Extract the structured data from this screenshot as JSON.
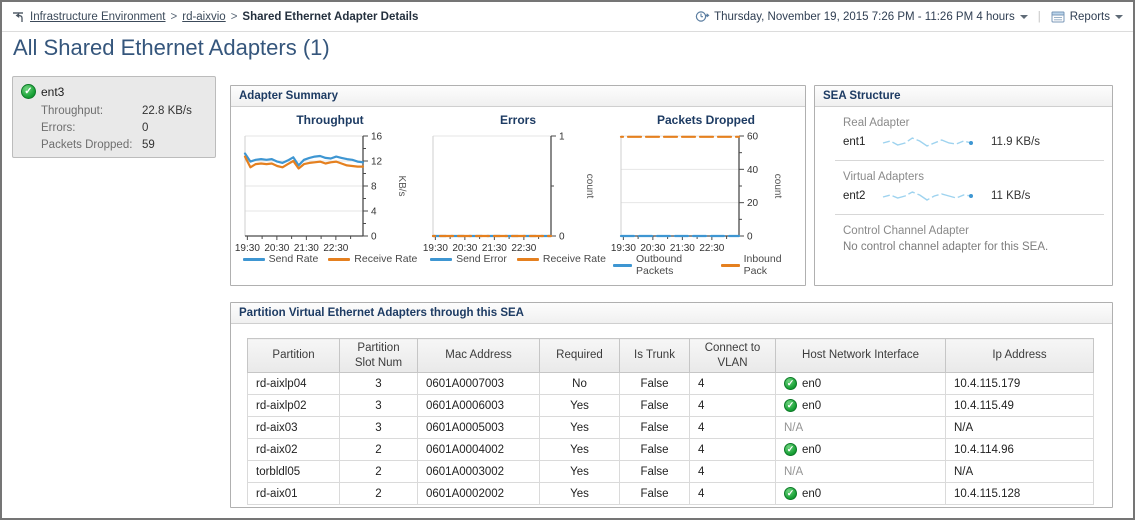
{
  "header": {
    "breadcrumb": {
      "separator": ">",
      "items": [
        {
          "label": "Infrastructure Environment"
        },
        {
          "label": "rd-aixvio"
        },
        {
          "label": "Shared Ethernet Adapter Details"
        }
      ]
    },
    "time_range": "Thursday, November 19, 2015 7:26 PM - 11:26 PM 4 hours",
    "divider": "|",
    "reports_label": "Reports"
  },
  "page": {
    "title": "All Shared Ethernet Adapters (1)"
  },
  "selected_adapter": {
    "name": "ent3",
    "stats": [
      {
        "label": "Throughput:",
        "value": "22.8 KB/s"
      },
      {
        "label": "Errors:",
        "value": "0"
      },
      {
        "label": "Packets Dropped:",
        "value": "59"
      }
    ]
  },
  "panels": {
    "adapter_summary": "Adapter Summary",
    "sea_structure": "SEA Structure",
    "partition_table": "Partition Virtual Ethernet Adapters through this SEA"
  },
  "chart_data": [
    {
      "type": "line",
      "title": "Throughput",
      "ylabel": "KB/s",
      "ylim": [
        0,
        16
      ],
      "yticks": [
        0,
        4,
        8,
        12,
        16
      ],
      "grid": true,
      "legend_position": "bottom",
      "x_tick_labels": [
        "19:30",
        "20:30",
        "21:30",
        "22:30"
      ],
      "x_tick_pos": [
        0.02,
        0.27,
        0.52,
        0.77
      ],
      "x_minor_pos": [
        0.145,
        0.395,
        0.645,
        0.895
      ],
      "series": [
        {
          "name": "Send Rate",
          "color": "#3e96d2",
          "values": [
            13.2,
            11.9,
            12.2,
            12.3,
            12.2,
            12.3,
            11.9,
            11.7,
            12.1,
            12.6,
            11.3,
            12.2,
            12.5,
            12.7,
            12.8,
            12.5,
            12.4,
            12.7,
            12.5,
            12.3,
            12.2,
            11.9,
            11.8
          ]
        },
        {
          "name": "Receive Rate",
          "color": "#e5801f",
          "values": [
            12.7,
            11.0,
            11.5,
            11.6,
            11.5,
            11.6,
            11.2,
            11.0,
            11.5,
            12.0,
            10.8,
            11.5,
            11.7,
            11.8,
            11.9,
            11.6,
            11.8,
            11.9,
            11.6,
            11.3,
            11.2,
            11.1,
            11.1
          ]
        }
      ]
    },
    {
      "type": "line",
      "title": "Errors",
      "ylabel": "count",
      "ylim": [
        0,
        1
      ],
      "yticks": [
        0,
        1
      ],
      "grid": true,
      "legend_position": "bottom",
      "x_tick_labels": [
        "19:30",
        "20:30",
        "21:30",
        "22:30"
      ],
      "x_tick_pos": [
        0.02,
        0.27,
        0.52,
        0.77
      ],
      "x_minor_pos": [
        0.145,
        0.395,
        0.645,
        0.895
      ],
      "series": [
        {
          "name": "Send Error",
          "color": "#3e96d2",
          "values": [
            0,
            0,
            0,
            0,
            0,
            0,
            0,
            0,
            0,
            0,
            0,
            0,
            0,
            0,
            0
          ]
        },
        {
          "name": "Receive Rate",
          "color": "#e5801f",
          "values": [
            0,
            0,
            0,
            0,
            0,
            0,
            0,
            0,
            0,
            0,
            0,
            0,
            0,
            0,
            0
          ]
        }
      ]
    },
    {
      "type": "line",
      "title": "Packets Dropped",
      "ylabel": "count",
      "ylim": [
        0,
        60
      ],
      "yticks": [
        0,
        20,
        40,
        60
      ],
      "grid": true,
      "legend_position": "bottom",
      "x_tick_labels": [
        "19:30",
        "20:30",
        "21:30",
        "22:30"
      ],
      "x_tick_pos": [
        0.02,
        0.27,
        0.52,
        0.77
      ],
      "x_minor_pos": [
        0.145,
        0.395,
        0.645,
        0.895
      ],
      "series": [
        {
          "name": "Outbound Packets",
          "color": "#3e96d2",
          "values": [
            0,
            0,
            0,
            0,
            0,
            0,
            0,
            0,
            0,
            0,
            0,
            0,
            0,
            0,
            0
          ]
        },
        {
          "name": "Inbound Pack",
          "color": "#e5801f",
          "values": [
            59.5,
            59.5,
            59.5,
            59.5,
            59.5,
            59.5,
            59.5,
            59.5,
            59.5,
            59.5,
            59.5,
            59.5,
            59.5,
            59.5,
            59.5
          ]
        }
      ]
    }
  ],
  "sea_structure": {
    "sections": [
      {
        "label": "Real Adapter",
        "adapter": "ent1",
        "value": "11.9 KB/s",
        "spark": [
          3.0,
          3.1,
          2.9,
          3.0,
          3.25,
          3.1,
          2.85,
          3.0,
          3.15,
          3.0,
          2.95,
          3.1,
          3.0
        ]
      },
      {
        "label": "Virtual Adapters",
        "adapter": "ent2",
        "value": "11 KB/s",
        "spark": [
          2.95,
          3.05,
          2.9,
          3.0,
          3.2,
          3.05,
          2.8,
          3.0,
          3.1,
          3.0,
          2.9,
          3.05,
          3.0
        ]
      },
      {
        "label": "Control Channel Adapter",
        "message": "No control channel adapter for this SEA."
      }
    ]
  },
  "partition_table": {
    "columns": [
      "Partition",
      "Partition Slot Num",
      "Mac Address",
      "Required",
      "Is Trunk",
      "Connect to VLAN",
      "Host Network Interface",
      "Ip Address"
    ],
    "rows": [
      {
        "partition": "rd-aixlp04",
        "slot": "3",
        "mac": "0601A0007003",
        "required": "No",
        "trunk": "False",
        "vlan": "4",
        "host": {
          "ok": true,
          "label": "en0"
        },
        "ip": "10.4.115.179"
      },
      {
        "partition": "rd-aixlp02",
        "slot": "3",
        "mac": "0601A0006003",
        "required": "Yes",
        "trunk": "False",
        "vlan": "4",
        "host": {
          "ok": true,
          "label": "en0"
        },
        "ip": "10.4.115.49"
      },
      {
        "partition": "rd-aix03",
        "slot": "3",
        "mac": "0601A0005003",
        "required": "Yes",
        "trunk": "False",
        "vlan": "4",
        "host": {
          "ok": false,
          "label": "N/A"
        },
        "ip": "N/A"
      },
      {
        "partition": "rd-aix02",
        "slot": "2",
        "mac": "0601A0004002",
        "required": "Yes",
        "trunk": "False",
        "vlan": "4",
        "host": {
          "ok": true,
          "label": "en0"
        },
        "ip": "10.4.114.96"
      },
      {
        "partition": "torbldl05",
        "slot": "2",
        "mac": "0601A0003002",
        "required": "Yes",
        "trunk": "False",
        "vlan": "4",
        "host": {
          "ok": false,
          "label": "N/A"
        },
        "ip": "N/A"
      },
      {
        "partition": "rd-aix01",
        "slot": "2",
        "mac": "0601A0002002",
        "required": "Yes",
        "trunk": "False",
        "vlan": "4",
        "host": {
          "ok": true,
          "label": "en0"
        },
        "ip": "10.4.115.128"
      }
    ]
  },
  "icons": {
    "level-up-icon": "navigate-up-arrow-with-bar",
    "time-range-icon": "clock-with-arrow",
    "reports-icon": "report-document",
    "dropdown-caret": "down-triangle",
    "status-ok-icon": "green-circle-check"
  },
  "colors": {
    "accent_blue": "#3e96d2",
    "accent_orange": "#e5801f",
    "status_ok_green": "#17a035",
    "panel_header_text": "#1d3b63",
    "title_text": "#35567c",
    "na_gray": "#949494"
  }
}
